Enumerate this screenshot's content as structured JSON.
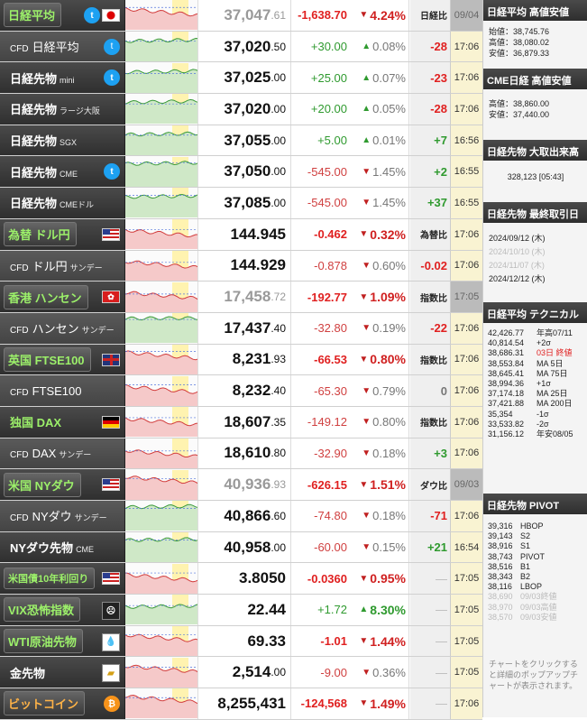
{
  "rows": [
    {
      "name": "日経平均",
      "sub": "",
      "style": "boxed",
      "icon": "twitter+jp-flag",
      "price_int": "37,047",
      "price_dec": ".61",
      "price_gray": true,
      "chg": "-1,638.70",
      "pct": "4.24%",
      "dir": "down",
      "diff": "日経比",
      "time": "09/04",
      "time_old": true,
      "spark": "red"
    },
    {
      "name": "日経平均",
      "pre": "CFD",
      "sub": "",
      "style": "cfd",
      "icon": "twitter",
      "price_int": "37,020",
      "price_dec": ".50",
      "chg": "+30.00",
      "pct": "0.08%",
      "dir": "up",
      "diff": "-28",
      "diff_color": "red",
      "time": "17:06",
      "spark": "green"
    },
    {
      "name": "日経先物",
      "sub": "mini",
      "style": "plain",
      "icon": "twitter",
      "price_int": "37,025",
      "price_dec": ".00",
      "chg": "+25.00",
      "pct": "0.07%",
      "dir": "up",
      "diff": "-23",
      "diff_color": "red",
      "time": "17:06",
      "spark": "green"
    },
    {
      "name": "日経先物",
      "sub": "ラージ大阪",
      "style": "plain",
      "icon": "",
      "price_int": "37,020",
      "price_dec": ".00",
      "chg": "+20.00",
      "pct": "0.05%",
      "dir": "up",
      "diff": "-28",
      "diff_color": "red",
      "time": "17:06",
      "spark": "green"
    },
    {
      "name": "日経先物",
      "sub": "SGX",
      "style": "plain",
      "icon": "",
      "price_int": "37,055",
      "price_dec": ".00",
      "chg": "+5.00",
      "pct": "0.01%",
      "dir": "up",
      "diff": "+7",
      "diff_color": "green",
      "time": "16:56",
      "spark": "green"
    },
    {
      "name": "日経先物",
      "sub": "CME",
      "style": "plain",
      "icon": "twitter",
      "price_int": "37,050",
      "price_dec": ".00",
      "chg": "-545.00",
      "pct": "1.45%",
      "dir": "down",
      "diff": "+2",
      "diff_color": "green",
      "time": "16:55",
      "spark": "green"
    },
    {
      "name": "日経先物",
      "sub": "CMEドル",
      "style": "plain",
      "icon": "",
      "price_int": "37,085",
      "price_dec": ".00",
      "chg": "-545.00",
      "pct": "1.45%",
      "dir": "down",
      "diff": "+37",
      "diff_color": "green",
      "time": "16:55",
      "spark": "green"
    },
    {
      "name": "為替 ドル円",
      "sub": "",
      "style": "boxed",
      "icon": "us-flag",
      "price_int": "144.945",
      "price_dec": "",
      "chg": "-0.462",
      "pct": "0.32%",
      "dir": "down",
      "diff": "為替比",
      "time": "17:06",
      "spark": "red"
    },
    {
      "name": "ドル円",
      "pre": "CFD",
      "sub": "サンデー",
      "style": "cfd",
      "icon": "",
      "price_int": "144.929",
      "price_dec": "",
      "chg": "-0.878",
      "pct": "0.60%",
      "dir": "down",
      "diff": "-0.02",
      "diff_color": "red",
      "time": "17:06",
      "spark": "red"
    },
    {
      "name": "香港 ハンセン",
      "sub": "",
      "style": "boxed",
      "icon": "hk-flag",
      "price_int": "17,458",
      "price_dec": ".72",
      "price_gray": true,
      "chg": "-192.77",
      "pct": "1.09%",
      "dir": "down",
      "diff": "指数比",
      "time": "17:05",
      "time_old": true,
      "spark": "red"
    },
    {
      "name": "ハンセン",
      "pre": "CFD",
      "sub": "サンデー",
      "style": "cfd",
      "icon": "",
      "price_int": "17,437",
      "price_dec": ".40",
      "chg": "-32.80",
      "pct": "0.19%",
      "dir": "down",
      "diff": "-22",
      "diff_color": "red",
      "time": "17:06",
      "spark": "green"
    },
    {
      "name": "英国 FTSE100",
      "sub": "",
      "style": "boxed",
      "icon": "uk-flag",
      "price_int": "8,231",
      "price_dec": ".93",
      "chg": "-66.53",
      "pct": "0.80%",
      "dir": "down",
      "diff": "指数比",
      "time": "17:06",
      "spark": "red"
    },
    {
      "name": "FTSE100",
      "pre": "CFD",
      "sub": "",
      "style": "cfd",
      "icon": "",
      "price_int": "8,232",
      "price_dec": ".40",
      "chg": "-65.30",
      "pct": "0.79%",
      "dir": "down",
      "diff": "0",
      "diff_color": "gray",
      "time": "17:06",
      "spark": "red"
    },
    {
      "name": "独国 DAX",
      "sub": "",
      "style": "plain",
      "icon": "de-flag",
      "price_int": "18,607",
      "price_dec": ".35",
      "chg": "-149.12",
      "pct": "0.80%",
      "dir": "down",
      "diff": "指数比",
      "time": "17:06",
      "spark": "red"
    },
    {
      "name": "DAX",
      "pre": "CFD",
      "sub": "サンデー",
      "style": "cfd",
      "icon": "",
      "price_int": "18,610",
      "price_dec": ".80",
      "chg": "-32.90",
      "pct": "0.18%",
      "dir": "down",
      "diff": "+3",
      "diff_color": "green",
      "time": "17:06",
      "spark": "red"
    },
    {
      "name": "米国 NYダウ",
      "sub": "",
      "style": "boxed",
      "icon": "us-flag",
      "price_int": "40,936",
      "price_dec": ".93",
      "price_gray": true,
      "chg": "-626.15",
      "pct": "1.51%",
      "dir": "down",
      "diff": "ダウ比",
      "time": "09/03",
      "time_old": true,
      "spark": "red"
    },
    {
      "name": "NYダウ",
      "pre": "CFD",
      "sub": "サンデー",
      "style": "cfd",
      "icon": "",
      "price_int": "40,866",
      "price_dec": ".60",
      "chg": "-74.80",
      "pct": "0.18%",
      "dir": "down",
      "diff": "-71",
      "diff_color": "red",
      "time": "17:06",
      "spark": "green"
    },
    {
      "name": "NYダウ先物",
      "sub": "CME",
      "style": "plain",
      "icon": "",
      "price_int": "40,958",
      "price_dec": ".00",
      "chg": "-60.00",
      "pct": "0.15%",
      "dir": "down",
      "diff": "+21",
      "diff_color": "green",
      "time": "16:54",
      "spark": "green"
    },
    {
      "name": "米国債10年利回り",
      "sub": "",
      "style": "boxed",
      "small": true,
      "icon": "us-flag",
      "price_int": "3.8050",
      "price_dec": "",
      "chg": "-0.0360",
      "pct": "0.95%",
      "dir": "down",
      "diff": "—",
      "diff_color": "dash",
      "time": "17:05",
      "spark": "red"
    },
    {
      "name": "VIX恐怖指数",
      "sub": "",
      "style": "boxed",
      "icon": "scream",
      "price_int": "22.44",
      "price_dec": "",
      "chg": "+1.72",
      "pct": "8.30%",
      "dir": "up",
      "diff": "—",
      "diff_color": "dash",
      "time": "17:05",
      "spark": "green"
    },
    {
      "name": "WTI原油先物",
      "sub": "",
      "style": "boxed",
      "icon": "oil-drop",
      "price_int": "69.33",
      "price_dec": "",
      "chg": "-1.01",
      "pct": "1.44%",
      "dir": "down",
      "diff": "—",
      "diff_color": "dash",
      "time": "17:05",
      "spark": "red"
    },
    {
      "name": "金先物",
      "sub": "",
      "style": "plain",
      "icon": "gold-bars",
      "price_int": "2,514",
      "price_dec": ".00",
      "chg": "-9.00",
      "pct": "0.36%",
      "dir": "down",
      "diff": "—",
      "diff_color": "dash",
      "time": "17:05",
      "spark": "red"
    },
    {
      "name": "ビットコイン",
      "sub": "",
      "style": "boxed",
      "icon": "bitcoin",
      "price_int": "8,255,431",
      "price_dec": "",
      "chg": "-124,568",
      "pct": "1.49%",
      "dir": "down",
      "diff": "—",
      "diff_color": "dash",
      "time": "17:06",
      "spark": "red"
    }
  ],
  "side": {
    "p1": {
      "title": "日経平均 高値安値",
      "lines": [
        "始値：38,745.76",
        "高値：38,080.02",
        "安値：36,879.33"
      ]
    },
    "p2": {
      "title": "CME日経 高値安値",
      "lines": [
        "高値：38,860.00",
        "安値：37,440.00"
      ]
    },
    "p3": {
      "title": "日経先物 大取出来高",
      "value": "328,123 [05:43]"
    },
    "p4": {
      "title": "日経先物 最終取引日",
      "dates": [
        {
          "t": "2024/09/12 (木)",
          "dim": false
        },
        {
          "t": "2024/10/10 (木)",
          "dim": true
        },
        {
          "t": "2024/11/07 (木)",
          "dim": true
        },
        {
          "t": "2024/12/12 (木)",
          "dim": false
        }
      ]
    },
    "p5": {
      "title": "日経平均 テクニカル",
      "rows": [
        {
          "v": "42,426.77",
          "l": "年高07/11",
          "red": false
        },
        {
          "v": "40,814.54",
          "l": "+2σ",
          "red": false
        },
        {
          "v": "38,686.31",
          "l": "03日 終値",
          "red": true
        },
        {
          "v": "38,553.84",
          "l": "MA 5日",
          "red": false
        },
        {
          "v": "38,645.41",
          "l": "MA 75日",
          "red": false
        },
        {
          "v": "38,994.36",
          "l": "+1σ",
          "red": false
        },
        {
          "v": "37,174.18",
          "l": "MA 25日",
          "red": false
        },
        {
          "v": "37,421.88",
          "l": "MA 200日",
          "red": false
        },
        {
          "v": "35,354",
          "l": "-1σ",
          "red": false
        },
        {
          "v": "33,533.82",
          "l": "-2σ",
          "red": false
        },
        {
          "v": "31,156.12",
          "l": "年安08/05",
          "red": false
        }
      ]
    },
    "p6": {
      "title": "日経先物 PIVOT",
      "rows": [
        {
          "v": "39,316",
          "l": "HBOP",
          "dim": false
        },
        {
          "v": "39,143",
          "l": "S2",
          "dim": false
        },
        {
          "v": "38,916",
          "l": "S1",
          "dim": false
        },
        {
          "v": "38,743",
          "l": "PIVOT",
          "dim": false
        },
        {
          "v": "38,516",
          "l": "B1",
          "dim": false
        },
        {
          "v": "38,343",
          "l": "B2",
          "dim": false
        },
        {
          "v": "38,116",
          "l": "LBOP",
          "dim": false
        },
        {
          "v": "38,690",
          "l": "09/03終値",
          "dim": true
        },
        {
          "v": "38,970",
          "l": "09/03高値",
          "dim": true
        },
        {
          "v": "38,570",
          "l": "09/03安値",
          "dim": true
        }
      ]
    },
    "note": "チャートをクリックすると詳細のポップアップチャートが表示されます。"
  }
}
